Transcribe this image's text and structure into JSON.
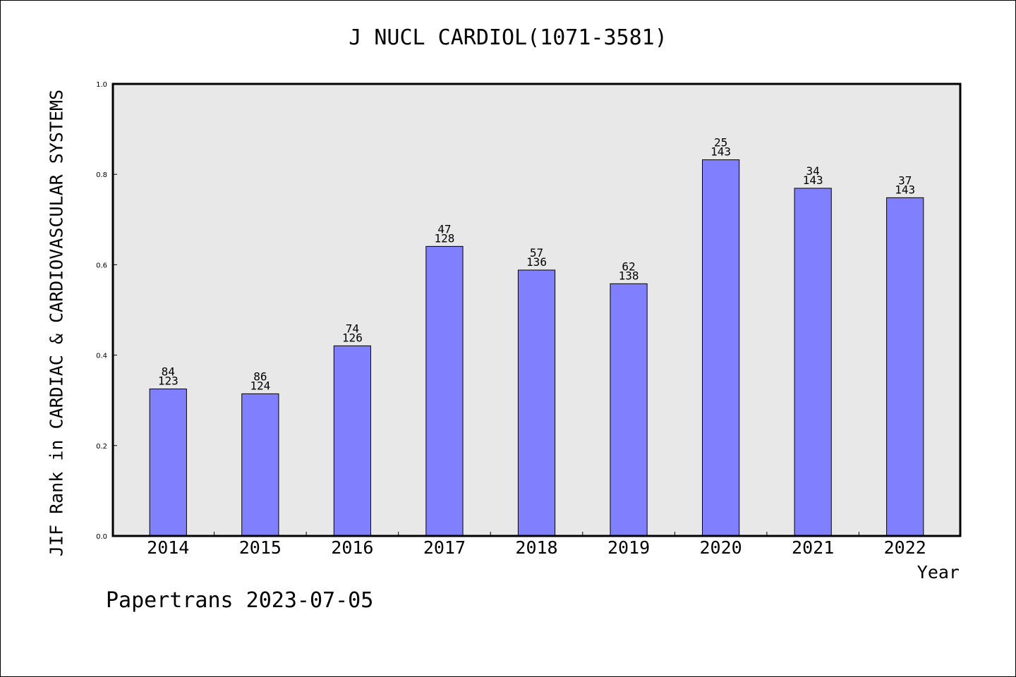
{
  "chart_data": {
    "type": "bar",
    "title": "J NUCL CARDIOL(1071-3581)",
    "xlabel": "Year",
    "ylabel": "JIF Rank in CARDIAC & CARDIOVASCULAR SYSTEMS",
    "ylim": [
      0.0,
      1.0
    ],
    "yticks": [
      "0.0",
      "0.2",
      "0.4",
      "0.6",
      "0.8",
      "1.0"
    ],
    "categories": [
      "2014",
      "2015",
      "2016",
      "2017",
      "2018",
      "2019",
      "2020",
      "2021",
      "2022"
    ],
    "values": [
      0.3252,
      0.3145,
      0.4206,
      0.6406,
      0.5882,
      0.558,
      0.8322,
      0.7692,
      0.7483
    ],
    "rank_labels": [
      "84",
      "86",
      "74",
      "47",
      "57",
      "62",
      "25",
      "34",
      "37"
    ],
    "total_labels": [
      "123",
      "124",
      "126",
      "128",
      "136",
      "138",
      "143",
      "143",
      "143"
    ],
    "bar_color": "#8080ff",
    "plot_background": "#e8e8e8",
    "grid": false
  },
  "footer": "Papertrans 2023-07-05"
}
